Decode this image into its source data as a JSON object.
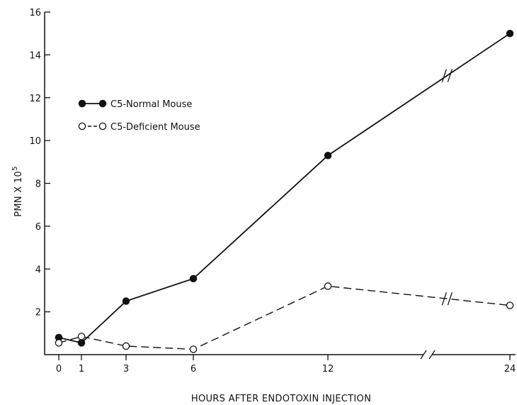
{
  "chart_data": {
    "type": "line",
    "title": "",
    "xlabel": "HOURS AFTER ENDOTOXIN INJECTION",
    "ylabel": "PMN X 10",
    "ylabel_superscript": "5",
    "x_ticks": [
      0,
      1,
      3,
      6,
      12,
      24
    ],
    "x_tick_labels": [
      "0",
      "1",
      "3",
      "6",
      "12",
      "24"
    ],
    "x_axis_break": "between 12 and 24",
    "y_ticks": [
      2,
      4,
      6,
      8,
      10,
      12,
      14,
      16
    ],
    "y_tick_labels": [
      "2",
      "4",
      "6",
      "8",
      "10",
      "12",
      "14",
      "16"
    ],
    "ylim": [
      0,
      16
    ],
    "grid": false,
    "legend_position": "upper-left",
    "series": [
      {
        "name": "C5-Normal Mouse",
        "line_style": "solid",
        "marker": "filled-circle",
        "x": [
          0,
          1,
          3,
          6,
          12,
          24
        ],
        "y": [
          0.8,
          0.55,
          2.5,
          3.55,
          9.3,
          15.0
        ]
      },
      {
        "name": "C5-Deficient Mouse",
        "line_style": "dashed",
        "marker": "open-circle",
        "x": [
          0,
          1,
          3,
          6,
          12,
          24
        ],
        "y": [
          0.55,
          0.85,
          0.4,
          0.25,
          3.2,
          2.3
        ]
      }
    ]
  }
}
